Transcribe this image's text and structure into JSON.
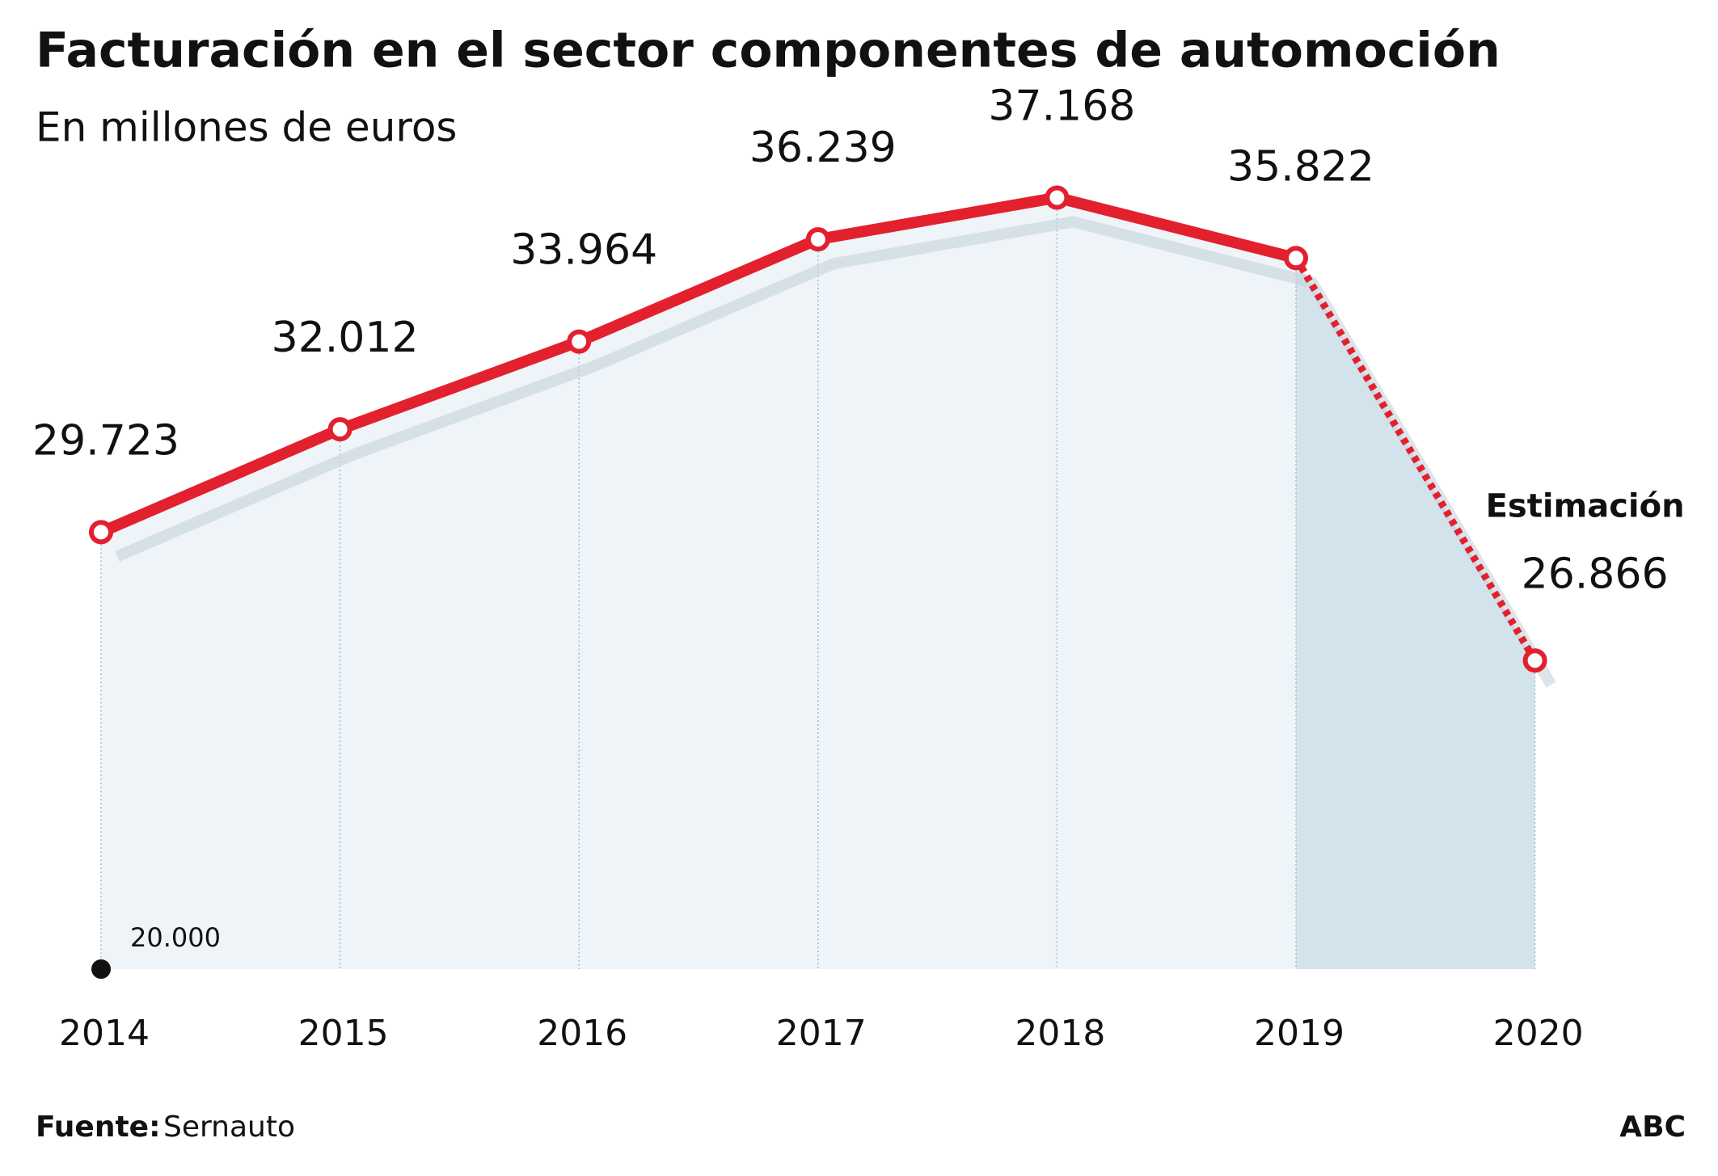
{
  "chart_data": {
    "type": "line",
    "title": "Facturación en el sector componentes de automoción",
    "subtitle": "En millones de euros",
    "categories": [
      "2014",
      "2015",
      "2016",
      "2017",
      "2018",
      "2019",
      "2020"
    ],
    "series": [
      {
        "color": "#e3202e",
        "values": [
          29723,
          32012,
          33964,
          36239,
          37168,
          35822,
          26866
        ],
        "value_labels": [
          "29.723",
          "32.012",
          "33.964",
          "36.239",
          "37.168",
          "35.822",
          "26.866"
        ],
        "estimated": [
          false,
          false,
          false,
          false,
          false,
          false,
          true
        ]
      }
    ],
    "annotation": "Estimación",
    "ylim": [
      20000,
      40000
    ],
    "yticks": [
      {
        "value": 20000,
        "label": "20.000"
      }
    ],
    "source_label": "Fuente:",
    "source": "Sernauto",
    "credit": "ABC"
  }
}
